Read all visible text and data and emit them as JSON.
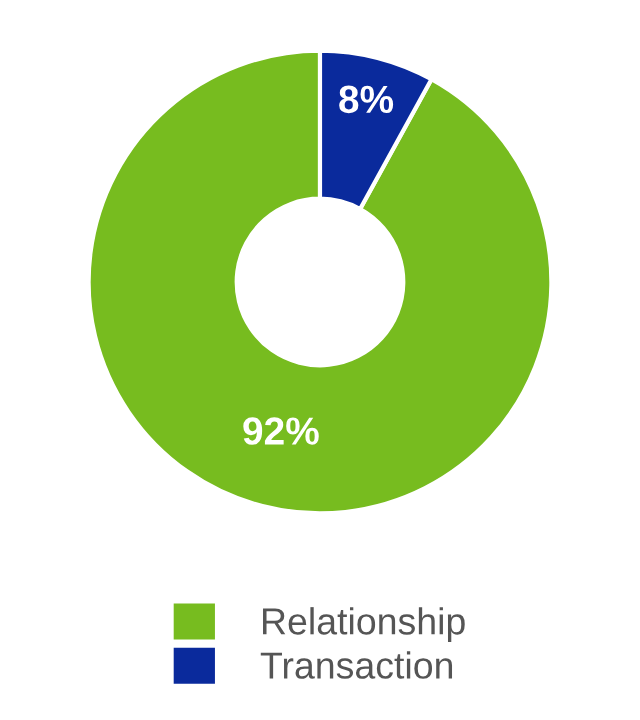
{
  "chart_data": {
    "type": "donut",
    "categories": [
      "Relationship",
      "Transaction"
    ],
    "values": [
      92,
      8
    ],
    "colors": [
      "#77bc1f",
      "#0a2a9c"
    ],
    "value_labels": [
      "92%",
      "8%"
    ],
    "legend": "bottom"
  }
}
